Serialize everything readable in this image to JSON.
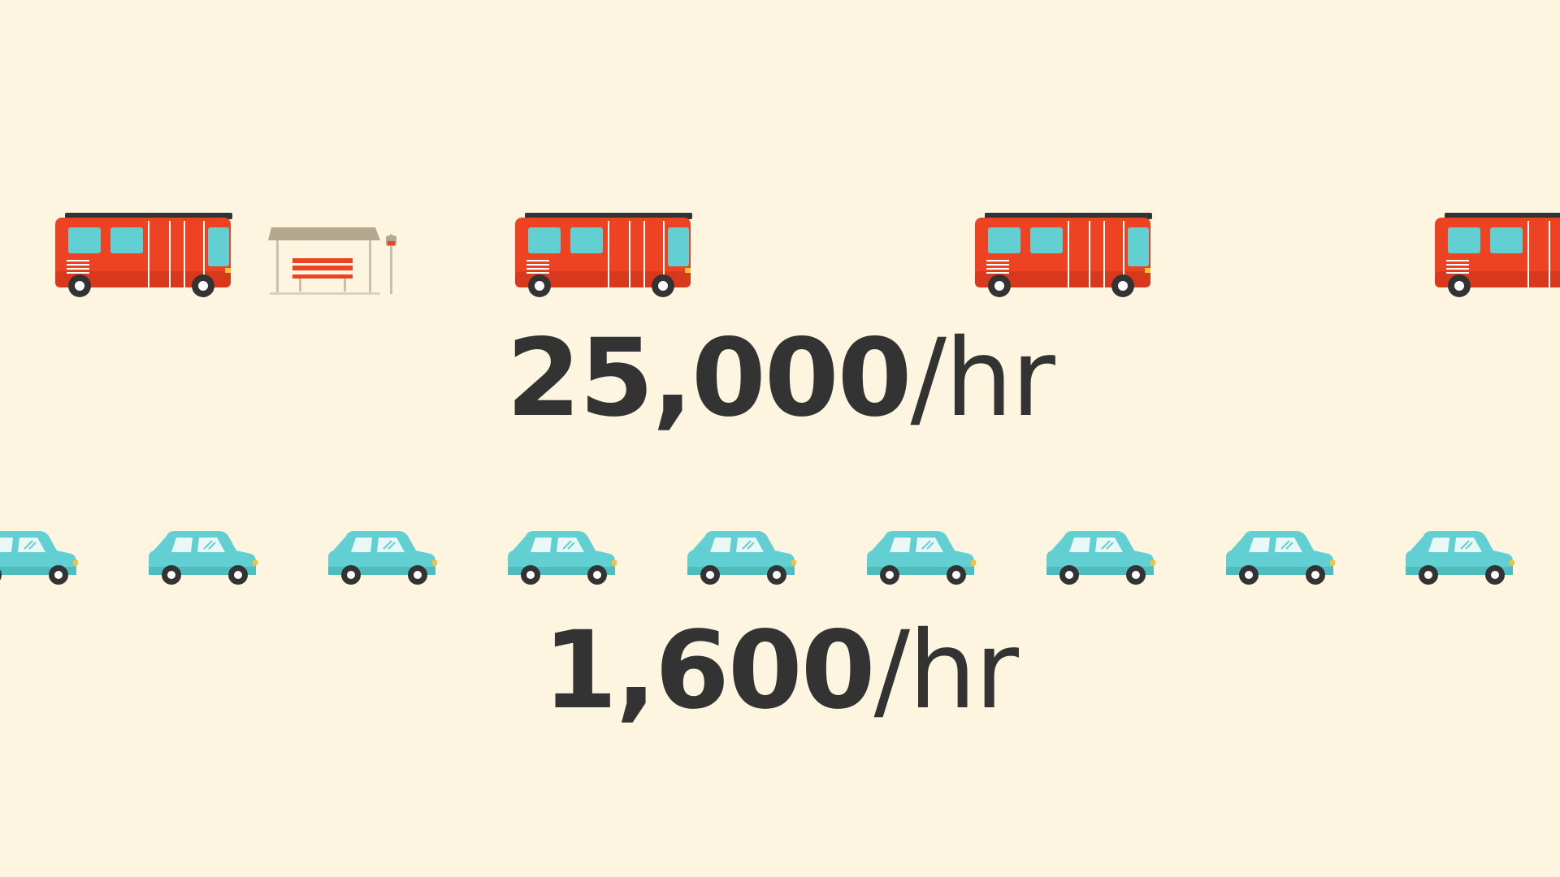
{
  "colors": {
    "background": "#fdf5e0",
    "text": "#333333",
    "bus_body": "#ee4323",
    "bus_window": "#62d0d2",
    "car_body": "#62d0d2",
    "shelter_roof": "#b6a88f"
  },
  "icons": {
    "bus": "bus-icon",
    "car": "car-icon",
    "shelter": "bus-stop-shelter-icon"
  },
  "bus_rate": {
    "value": "25,000",
    "unit": "/hr"
  },
  "car_rate": {
    "value": "1,600",
    "unit": "/hr"
  }
}
